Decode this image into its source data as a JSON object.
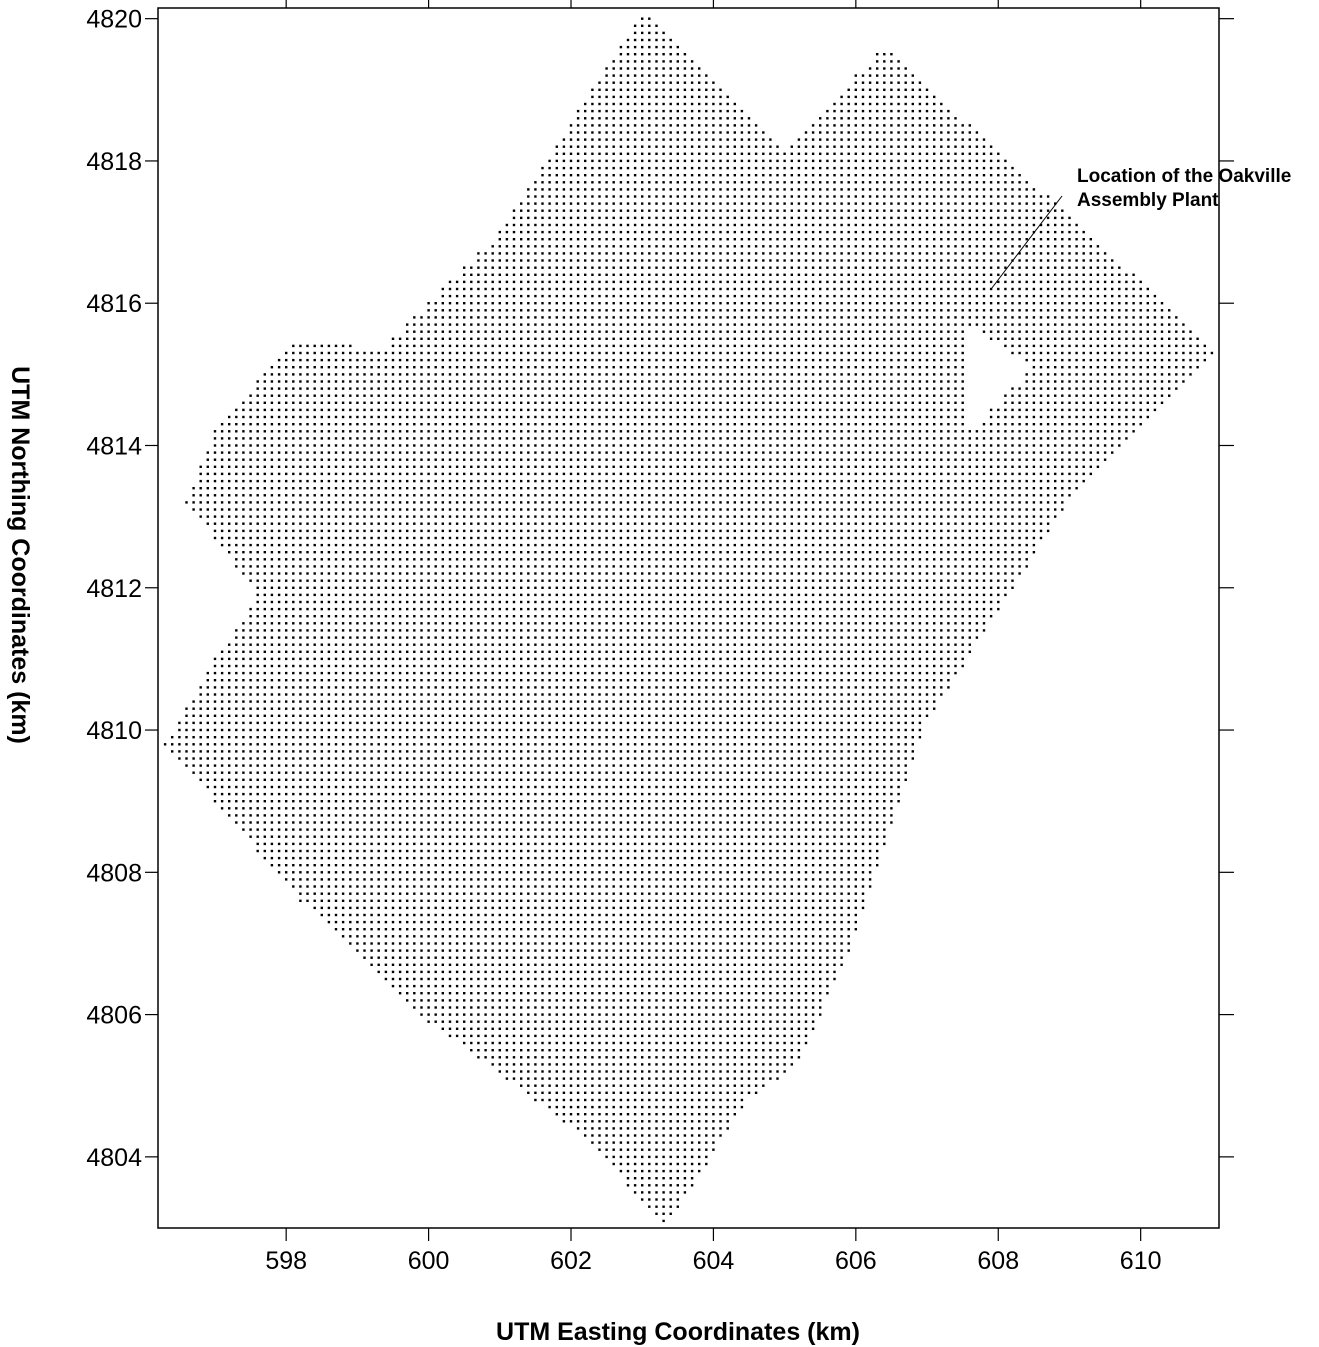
{
  "chart_data": {
    "type": "scatter",
    "description_kind": "receptor-grid",
    "xlabel": "UTM Easting Coordinates (km)",
    "ylabel": "UTM Northing Coordinates (km)",
    "xlim": [
      596.2,
      611.1
    ],
    "ylim": [
      4803.0,
      4820.15
    ],
    "x_ticks": [
      598,
      600,
      602,
      604,
      606,
      608,
      610
    ],
    "y_ticks": [
      4804,
      4806,
      4808,
      4810,
      4812,
      4814,
      4816,
      4818,
      4820
    ],
    "x_tick_labels": [
      "598",
      "600",
      "602",
      "604",
      "606",
      "608",
      "610"
    ],
    "y_tick_labels": [
      "4804",
      "4806",
      "4808",
      "4810",
      "4812",
      "4814",
      "4816",
      "4818",
      "4820"
    ],
    "grid": false,
    "marker_color": "#000000",
    "grid_spacing_km": 0.1,
    "region_outline": [
      [
        603.0,
        4820.1
      ],
      [
        604.6,
        4818.6
      ],
      [
        605.0,
        4818.1
      ],
      [
        605.7,
        4818.9
      ],
      [
        606.4,
        4819.6
      ],
      [
        608.6,
        4817.6
      ],
      [
        611.1,
        4815.3
      ],
      [
        610.1,
        4814.4
      ],
      [
        609.1,
        4813.4
      ],
      [
        607.0,
        4810.1
      ],
      [
        606.0,
        4807.1
      ],
      [
        605.2,
        4805.3
      ],
      [
        604.5,
        4804.8
      ],
      [
        603.3,
        4803.0
      ],
      [
        602.3,
        4804.2
      ],
      [
        600.0,
        4805.9
      ],
      [
        598.2,
        4807.6
      ],
      [
        596.3,
        4809.8
      ],
      [
        597.0,
        4811.0
      ],
      [
        597.6,
        4811.9
      ],
      [
        596.6,
        4813.2
      ],
      [
        597.0,
        4814.2
      ],
      [
        598.0,
        4815.4
      ],
      [
        598.6,
        4815.5
      ],
      [
        599.3,
        4815.3
      ],
      [
        601.0,
        4817.0
      ]
    ],
    "excluded_region": [
      [
        607.6,
        4815.7
      ],
      [
        608.5,
        4815.1
      ],
      [
        607.6,
        4814.2
      ]
    ],
    "annotations": [
      {
        "lines": [
          "Location of the Oakville",
          "Assembly Plant"
        ],
        "x": 609.0,
        "y": 4817.5,
        "arrow_to": [
          607.9,
          4816.2
        ]
      }
    ]
  }
}
